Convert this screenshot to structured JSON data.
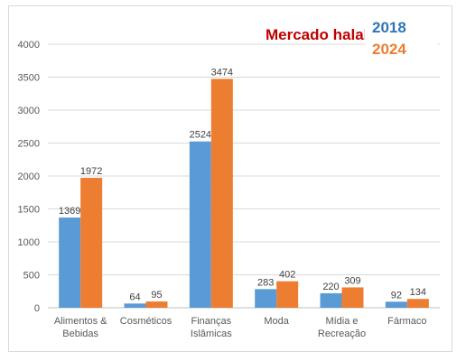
{
  "chart_data": {
    "type": "bar",
    "title": "Mercado halal",
    "categories": [
      [
        "Alimentos &",
        "Bebidas"
      ],
      [
        "Cosméticos"
      ],
      [
        "Finanças",
        "Islâmicas"
      ],
      [
        "Moda"
      ],
      [
        "Mídia e",
        "Recreação"
      ],
      [
        "Fármaco"
      ]
    ],
    "series": [
      {
        "name": "2018",
        "color": "#5b9bd5",
        "values": [
          1369,
          64,
          2524,
          283,
          220,
          92
        ]
      },
      {
        "name": "2024",
        "color": "#ed7d31",
        "values": [
          1972,
          95,
          3474,
          402,
          309,
          134
        ]
      }
    ],
    "ylim": [
      0,
      4000
    ],
    "yticks": [
      0,
      500,
      1000,
      1500,
      2000,
      2500,
      3000,
      3500,
      4000
    ],
    "grid": true,
    "legend_position": "top-right",
    "title_color": "#c00000",
    "legend_text_colors": {
      "2018": "#2e75b6",
      "2024": "#ed7d31"
    }
  }
}
